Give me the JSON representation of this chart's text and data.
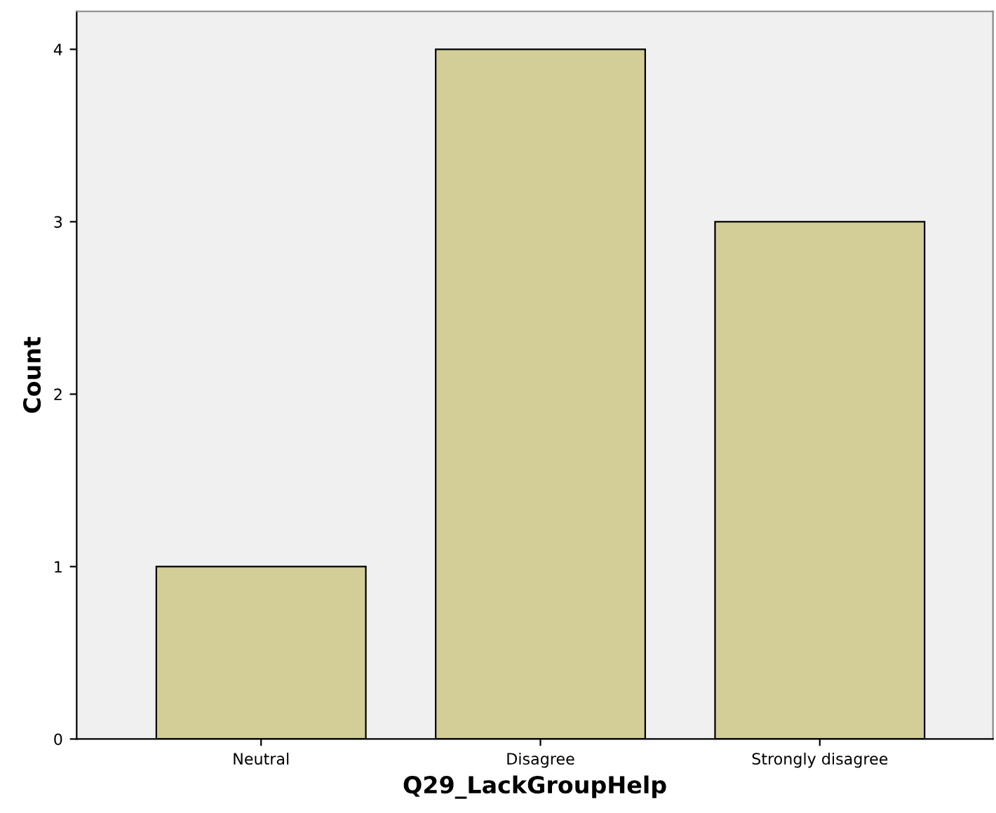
{
  "chart_data": {
    "type": "bar",
    "xlabel": "Q29_LackGroupHelp",
    "ylabel": "Count",
    "categories": [
      "Neutral",
      "Disagree",
      "Strongly disagree"
    ],
    "values": [
      1,
      4,
      3
    ],
    "color": "#d3ce97",
    "ylim": [
      0,
      4.22
    ],
    "yticks": [
      0,
      1,
      2,
      3,
      4
    ],
    "grid": false,
    "legend": false
  }
}
